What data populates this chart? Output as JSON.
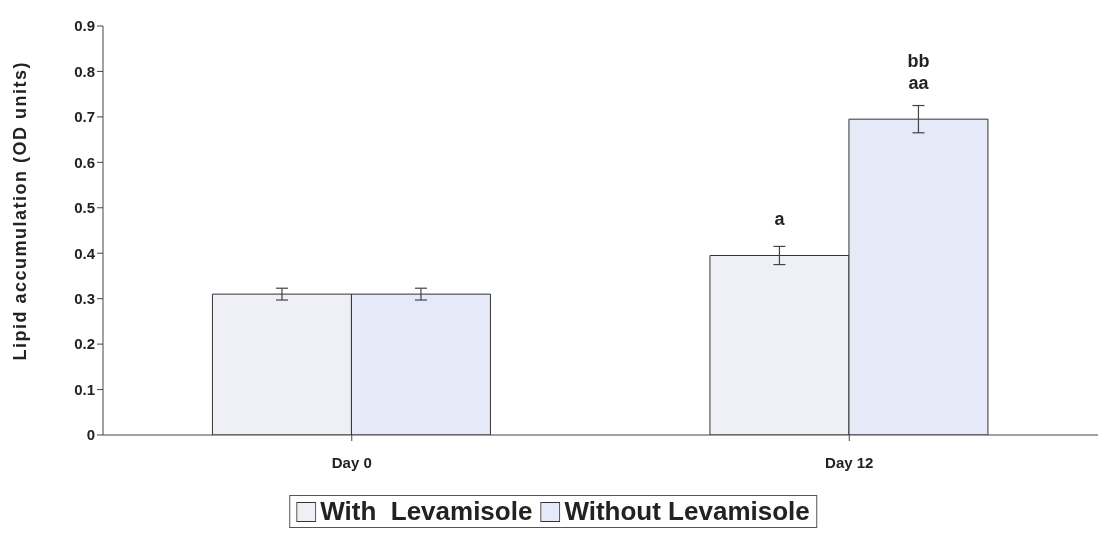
{
  "chart_data": {
    "type": "bar",
    "ylabel": "Lipid accumulation (OD units)",
    "categories": [
      "Day 0",
      "Day 12"
    ],
    "series": [
      {
        "name": "With  Levamisole",
        "color": "#efeff6",
        "values": [
          0.31,
          0.395
        ],
        "errors": [
          0.013,
          0.02
        ],
        "value_labels": [
          null,
          "a"
        ]
      },
      {
        "name": "Without Levamisole",
        "color": "#e6e9f7",
        "values": [
          0.31,
          0.695
        ],
        "errors": [
          0.013,
          0.03
        ],
        "value_labels": [
          null,
          "bb\naa"
        ]
      }
    ],
    "ylim": [
      0,
      0.9
    ],
    "yticks": [
      0,
      0.1,
      0.2,
      0.3,
      0.4,
      0.5,
      0.6,
      0.7,
      0.8,
      0.9
    ],
    "grid": false,
    "legend": "bottom"
  }
}
